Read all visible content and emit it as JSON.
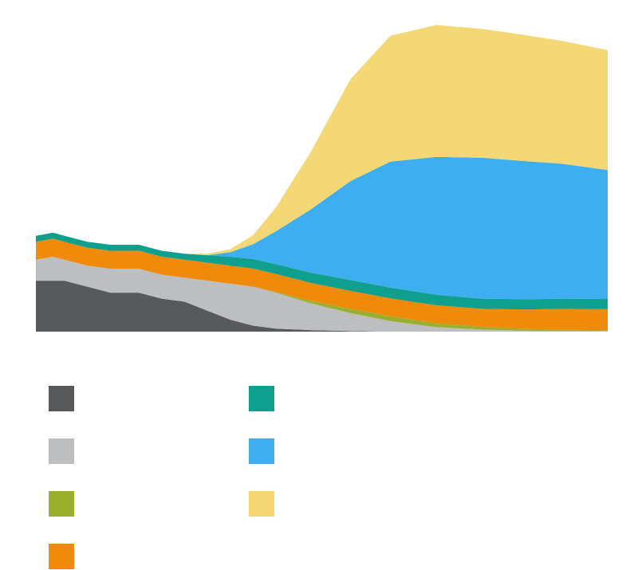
{
  "chart_data": {
    "type": "area",
    "stacked": true,
    "title": "",
    "xlabel": "",
    "ylabel": "",
    "axes_visible": false,
    "grid": false,
    "legend_placement": "bottom-left",
    "legend_text_visible": false,
    "xlim": [
      0,
      100
    ],
    "ylim": [
      0,
      100
    ],
    "x": [
      0,
      3,
      5,
      9,
      13,
      18,
      22,
      26,
      30,
      34,
      38,
      42,
      48,
      55,
      62,
      70,
      78,
      86,
      92,
      100
    ],
    "series": [
      {
        "color": "#58595b",
        "values": [
          17,
          17,
          17,
          15,
          13,
          13,
          11,
          10,
          7,
          4,
          2,
          1,
          0.5,
          0.2,
          0,
          0,
          0,
          0,
          0,
          0
        ]
      },
      {
        "color": "#bcbec0",
        "values": [
          7,
          8,
          7,
          7,
          8,
          8,
          8,
          8,
          10,
          12,
          13,
          12,
          9,
          6,
          3.5,
          1.5,
          0.7,
          0.3,
          0.2,
          0.2
        ]
      },
      {
        "color": "#9baf2e",
        "values": [
          0,
          0,
          0,
          0,
          0,
          0,
          0,
          0,
          0,
          0,
          0,
          0.2,
          0.8,
          1.4,
          1.6,
          1.3,
          0.9,
          0.6,
          0.4,
          0.3
        ]
      },
      {
        "color": "#f08a0b",
        "values": [
          6,
          6,
          6,
          6,
          6,
          6,
          6,
          6,
          6,
          6,
          6,
          6,
          6,
          6,
          6,
          6,
          6,
          6.5,
          7,
          7
        ]
      },
      {
        "color": "#0fa08d",
        "values": [
          2,
          2,
          2,
          2,
          2,
          2,
          2,
          2,
          2.5,
          3,
          3.2,
          3.3,
          3.4,
          3.6,
          3.6,
          3.5,
          3.4,
          3.4,
          3.4,
          3.4
        ]
      },
      {
        "color": "#3eaef0",
        "values": [
          0,
          0,
          0,
          0,
          0,
          0,
          0,
          0,
          0,
          1.5,
          5,
          11,
          21,
          33,
          42,
          46,
          47,
          46,
          45,
          43
        ]
      },
      {
        "color": "#f5d876",
        "values": [
          0,
          0,
          0,
          0,
          0,
          0,
          0,
          0,
          0.5,
          1,
          3,
          8,
          19,
          34,
          42,
          44,
          43,
          42,
          41,
          40
        ]
      }
    ]
  }
}
